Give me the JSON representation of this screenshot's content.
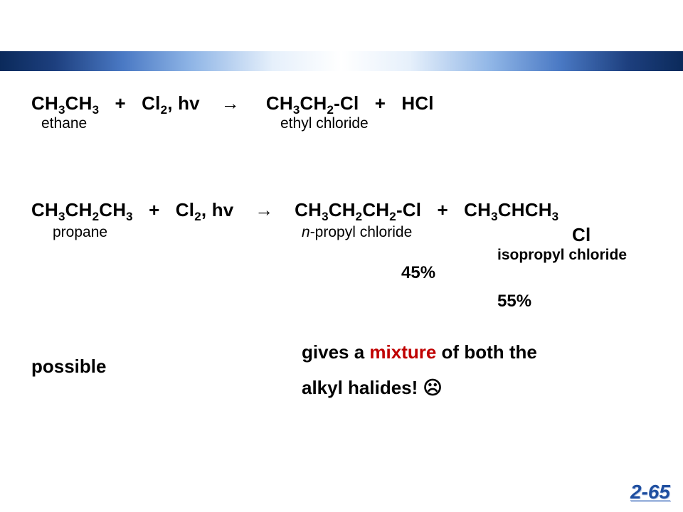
{
  "slide_number": "2-65",
  "colors": {
    "text": "#000000",
    "highlight": "#c00000",
    "slideNum": "#1f4fa0",
    "bar_stops": [
      "#0b2a5b",
      "#1d3f7e",
      "#4a79c4",
      "#8fb5e6",
      "#e6f0fb",
      "#ffffff"
    ]
  },
  "rxn1": {
    "reactant_formula_html": "CH<sub>3</sub>CH<sub>3</sub>",
    "reagent_html": "Cl<sub>2</sub>, hv",
    "product1_html": "CH<sub>3</sub>CH<sub>2</sub>-Cl",
    "product2_html": "HCl",
    "reactant_name": "ethane",
    "product1_name": "ethyl chloride"
  },
  "rxn2": {
    "reactant_formula_html": "CH<sub>3</sub>CH<sub>2</sub>CH<sub>3</sub>",
    "reagent_html": "Cl<sub>2</sub>, hv",
    "product1_html": "CH<sub>3</sub>CH<sub>2</sub>CH<sub>2</sub>-Cl",
    "product2_line1_html": "CH<sub>3</sub>CHCH<sub>3</sub>",
    "product2_line2_html": "Cl",
    "reactant_name": "propane",
    "product1_name_html": "<i>n</i>-propyl chloride",
    "product2_name": "isopropyl chloride",
    "pct1": "45%",
    "pct2": "55%"
  },
  "note": {
    "possible": "possible",
    "line1_pre": "gives a ",
    "line1_highlight": "mixture",
    "line1_post": " of both the",
    "line2": "alkyl halides!  ",
    "emoji": "☹"
  },
  "arrow_glyph": "→"
}
